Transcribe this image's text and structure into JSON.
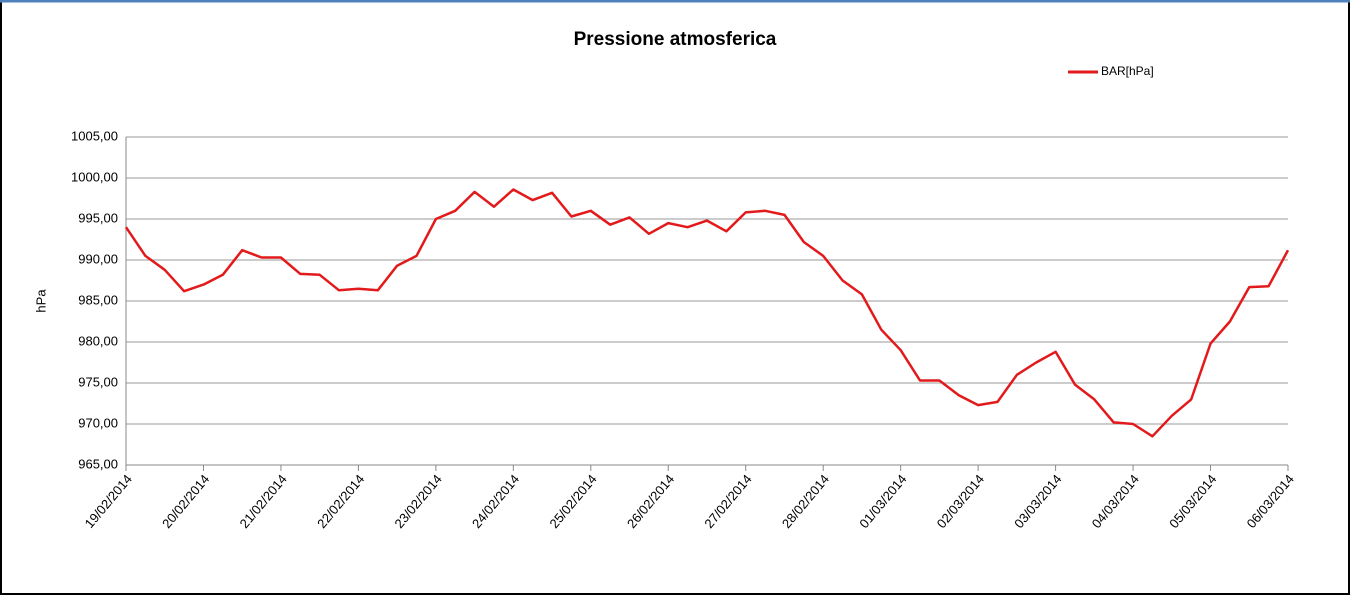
{
  "chart_data": {
    "type": "line",
    "title": "Pressione atmosferica",
    "y_label": "hPa",
    "categories": [
      "19/02/2014",
      null,
      null,
      null,
      "20/02/2014",
      null,
      null,
      null,
      "21/02/2014",
      null,
      null,
      null,
      "22/02/2014",
      null,
      null,
      null,
      "23/02/2014",
      null,
      null,
      null,
      "24/02/2014",
      null,
      null,
      null,
      "25/02/2014",
      null,
      null,
      null,
      "26/02/2014",
      null,
      null,
      null,
      "27/02/2014",
      null,
      null,
      null,
      "28/02/2014",
      null,
      null,
      null,
      "01/03/2014",
      null,
      null,
      null,
      "02/03/2014",
      null,
      null,
      null,
      "03/03/2014",
      null,
      null,
      null,
      "04/03/2014",
      null,
      null,
      null,
      "05/03/2014",
      null,
      null,
      null,
      "06/03/2014"
    ],
    "series": [
      {
        "name": "BAR[hPa]",
        "color": "#e31a1c",
        "values": [
          994,
          990.5,
          988.8,
          986.2,
          987,
          988.2,
          991.2,
          990.3,
          990.3,
          988.3,
          988.2,
          986.3,
          986.5,
          986.3,
          989.3,
          990.5,
          995,
          996,
          998.3,
          996.5,
          998.6,
          997.3,
          998.2,
          995.3,
          996,
          994.3,
          995.2,
          993.2,
          994.5,
          994,
          994.8,
          993.5,
          995.8,
          996,
          995.5,
          992.2,
          990.5,
          987.5,
          985.8,
          981.5,
          979,
          975.3,
          975.3,
          973.5,
          972.3,
          972.7,
          976,
          977.5,
          978.8,
          974.8,
          973,
          970.2,
          970,
          968.5,
          971,
          973,
          979.8,
          982.5,
          986.7,
          986.8,
          991.2
        ]
      }
    ],
    "ylim": [
      965,
      1005
    ],
    "yticks": [
      {
        "value": 965,
        "label": "965,00"
      },
      {
        "value": 970,
        "label": "970,00"
      },
      {
        "value": 975,
        "label": "975,00"
      },
      {
        "value": 980,
        "label": "980,00"
      },
      {
        "value": 985,
        "label": "985,00"
      },
      {
        "value": 990,
        "label": "990,00"
      },
      {
        "value": 995,
        "label": "995,00"
      },
      {
        "value": 1000,
        "label": "1000,00"
      },
      {
        "value": 1005,
        "label": "1005,00"
      }
    ],
    "grid": true,
    "legend": "top-right"
  }
}
